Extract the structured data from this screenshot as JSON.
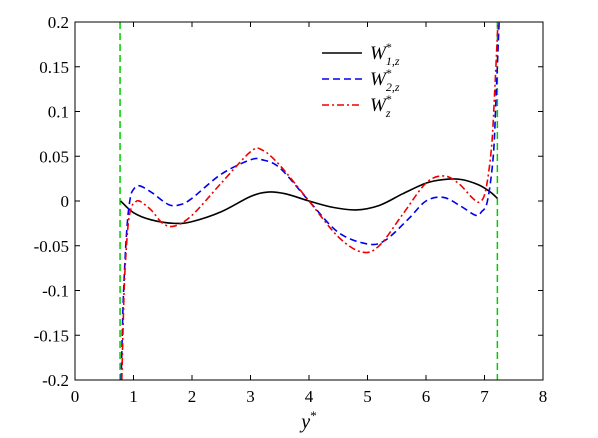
{
  "chart_data": {
    "type": "line",
    "xlabel": "y*",
    "ylabel": "",
    "title": "",
    "xlim": [
      0,
      8
    ],
    "ylim": [
      -0.2,
      0.2
    ],
    "x_ticks": [
      0,
      1,
      2,
      3,
      4,
      5,
      6,
      7,
      8
    ],
    "x_tick_labels": [
      "0",
      "1",
      "2",
      "3",
      "4",
      "5",
      "6",
      "7",
      "8"
    ],
    "y_ticks": [
      -0.2,
      -0.15,
      -0.1,
      -0.05,
      0,
      0.05,
      0.1,
      0.15,
      0.2
    ],
    "y_tick_labels": [
      "-0.2",
      "-0.15",
      "-0.1",
      "-0.05",
      "0",
      "0.05",
      "0.1",
      "0.15",
      "0.2"
    ],
    "grid": false,
    "legend_position": "top-center-right",
    "series": [
      {
        "name": "W*1,z",
        "legend_main": "W",
        "legend_sup": "*",
        "legend_sub": "1,z",
        "color": "#000000",
        "dash": "solid",
        "x": [
          0.78,
          1.0,
          1.3,
          1.7,
          2.0,
          2.5,
          3.0,
          3.3,
          3.6,
          4.0,
          4.4,
          4.8,
          5.2,
          5.6,
          6.0,
          6.3,
          6.6,
          6.9,
          7.1,
          7.22
        ],
        "y": [
          0.0,
          -0.013,
          -0.021,
          -0.025,
          -0.023,
          -0.012,
          0.005,
          0.01,
          0.008,
          0.0,
          -0.007,
          -0.01,
          -0.005,
          0.008,
          0.02,
          0.024,
          0.024,
          0.018,
          0.01,
          0.003
        ]
      },
      {
        "name": "W*2,z",
        "legend_main": "W",
        "legend_sup": "*",
        "legend_sub": "2,z",
        "color": "#0000ee",
        "dash": "dashed",
        "x": [
          0.79,
          0.82,
          0.86,
          0.9,
          0.95,
          1.0,
          1.1,
          1.3,
          1.6,
          1.8,
          2.0,
          2.5,
          3.0,
          3.2,
          3.5,
          4.0,
          4.5,
          5.0,
          5.3,
          5.7,
          6.0,
          6.3,
          6.6,
          6.85,
          6.95,
          7.05,
          7.15,
          7.2,
          7.25
        ],
        "y": [
          -0.2,
          -0.12,
          -0.06,
          -0.02,
          0.005,
          0.013,
          0.017,
          0.01,
          -0.004,
          -0.004,
          0.003,
          0.03,
          0.046,
          0.046,
          0.037,
          0.0,
          -0.035,
          -0.048,
          -0.044,
          -0.02,
          0.0,
          0.004,
          -0.006,
          -0.016,
          -0.012,
          0.0,
          0.05,
          0.12,
          0.2
        ]
      },
      {
        "name": "W*z",
        "legend_main": "W",
        "legend_sup": "*",
        "legend_sub": "z",
        "color": "#ee0000",
        "dash": "dashdot",
        "x": [
          0.8,
          0.84,
          0.88,
          0.92,
          0.97,
          1.02,
          1.1,
          1.3,
          1.5,
          1.7,
          2.0,
          2.5,
          3.0,
          3.2,
          3.5,
          4.0,
          4.5,
          4.9,
          5.2,
          5.6,
          6.0,
          6.3,
          6.55,
          6.8,
          6.92,
          7.02,
          7.12,
          7.18,
          7.23
        ],
        "y": [
          -0.2,
          -0.1,
          -0.05,
          -0.02,
          -0.006,
          -0.002,
          0.0,
          -0.01,
          -0.025,
          -0.028,
          -0.016,
          0.02,
          0.055,
          0.057,
          0.04,
          0.0,
          -0.04,
          -0.057,
          -0.05,
          -0.015,
          0.02,
          0.028,
          0.02,
          0.003,
          -0.001,
          0.012,
          0.06,
          0.13,
          0.2
        ]
      }
    ],
    "reference_lines": [
      {
        "orientation": "vertical",
        "x": 0.77,
        "color": "#00cc00",
        "dash": "dashed"
      },
      {
        "orientation": "vertical",
        "x": 7.22,
        "color": "#00cc00",
        "dash": "dashed"
      }
    ]
  }
}
